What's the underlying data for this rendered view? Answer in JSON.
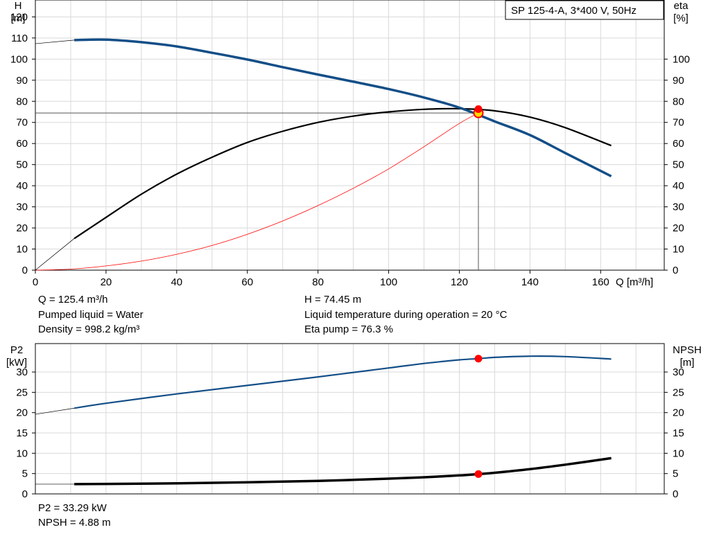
{
  "model_label": "SP 125-4-A, 3*400 V, 50Hz",
  "info_top": {
    "q": "Q = 125.4 m³/h",
    "liquid": "Pumped liquid = Water",
    "density": "Density = 998.2 kg/m³",
    "h": "H = 74.45 m",
    "temp": "Liquid temperature during operation = 20 °C",
    "eta": "Eta pump = 76.3 %"
  },
  "info_bottom": {
    "p2": "P2 = 33.29 kW",
    "npsh": "NPSH = 4.88 m"
  },
  "colors": {
    "head_curve": "#134e87",
    "eff_curve": "#000000",
    "system_curve": "#ff0000",
    "p2_curve": "#134e87",
    "npsh_curve": "#000000",
    "marker": "#ff0000",
    "duty_marker": "#ffd700",
    "grid": "#d9d9d9"
  },
  "chart_data": [
    {
      "type": "line",
      "xlabel": "Q [m³/h]",
      "ylabel_left": "H",
      "ylabel_left_unit": "[m]",
      "ylabel_right": "eta",
      "ylabel_right_unit": "[%]",
      "xlim": [
        0,
        178
      ],
      "ylim_left": [
        0,
        128
      ],
      "ylim_right": [
        0,
        128
      ],
      "x_ticks": [
        0,
        20,
        40,
        60,
        80,
        100,
        120,
        140,
        160
      ],
      "y_ticks_left": [
        0,
        10,
        20,
        30,
        40,
        50,
        60,
        70,
        80,
        90,
        100,
        110,
        120
      ],
      "y_ticks_right": [
        0,
        10,
        20,
        30,
        40,
        50,
        60,
        70,
        80,
        90,
        100
      ],
      "grid": true,
      "series": [
        {
          "id": "head",
          "axis": "left",
          "x": [
            11,
            20,
            30,
            40,
            50,
            60,
            70,
            80,
            90,
            100,
            110,
            120,
            130,
            140,
            150,
            163
          ],
          "y": [
            109,
            109.2,
            108,
            106,
            103,
            99.8,
            96.2,
            92.7,
            89.3,
            85.8,
            81.8,
            77,
            70.5,
            64,
            55.5,
            44.5
          ],
          "extension_x": [
            0,
            11
          ],
          "extension_y": [
            107.3,
            109
          ]
        },
        {
          "id": "eta",
          "axis": "right",
          "x": [
            11,
            20,
            30,
            40,
            50,
            60,
            70,
            80,
            90,
            100,
            110,
            120,
            130,
            140,
            150,
            163
          ],
          "y": [
            15,
            25,
            36,
            45.5,
            53.5,
            60.5,
            65.8,
            70,
            73,
            75,
            76.2,
            76.5,
            75.5,
            72.5,
            67.5,
            59
          ],
          "extension_x": [
            0,
            11
          ],
          "extension_y": [
            0,
            15
          ]
        },
        {
          "id": "system",
          "axis": "left",
          "x": [
            0,
            10,
            20,
            30,
            40,
            50,
            60,
            70,
            80,
            90,
            100,
            110,
            120,
            125.4
          ],
          "y": [
            0,
            0.5,
            2,
            4.3,
            7.5,
            11.7,
            17,
            23.3,
            30.6,
            38.8,
            48,
            58.5,
            69.5,
            74.45
          ]
        }
      ],
      "duty_point": {
        "q": 125.4,
        "h": 74.45,
        "eta": 76.3
      }
    },
    {
      "type": "line",
      "xlim": [
        0,
        178
      ],
      "ylabel_left": "P2",
      "ylabel_left_unit": "[kW]",
      "ylabel_right": "NPSH",
      "ylabel_right_unit": "[m]",
      "ylim_left": [
        0,
        37
      ],
      "ylim_right": [
        0,
        37
      ],
      "y_ticks_left": [
        0,
        5,
        10,
        15,
        20,
        25,
        30
      ],
      "y_ticks_right": [
        0,
        5,
        10,
        15,
        20,
        25,
        30
      ],
      "grid": true,
      "series": [
        {
          "id": "p2",
          "axis": "left",
          "x": [
            11,
            20,
            40,
            60,
            80,
            100,
            110,
            120,
            125.4,
            130,
            140,
            150,
            163
          ],
          "y": [
            21.1,
            22.3,
            24.6,
            26.7,
            28.8,
            31,
            32.1,
            33,
            33.29,
            33.6,
            33.9,
            33.8,
            33.2
          ],
          "extension_x": [
            0,
            11
          ],
          "extension_y": [
            19.6,
            21.1
          ]
        },
        {
          "id": "npsh",
          "axis": "right",
          "x": [
            11,
            20,
            40,
            60,
            80,
            100,
            110,
            120,
            125.4,
            130,
            140,
            150,
            163
          ],
          "y": [
            2.4,
            2.45,
            2.6,
            2.85,
            3.2,
            3.75,
            4.1,
            4.55,
            4.88,
            5.2,
            6.1,
            7.2,
            8.8
          ],
          "extension_x": [
            0,
            11
          ],
          "extension_y": [
            2.4,
            2.4
          ]
        }
      ],
      "duty_point": {
        "q": 125.4,
        "p2": 33.29,
        "npsh": 4.88
      }
    }
  ]
}
